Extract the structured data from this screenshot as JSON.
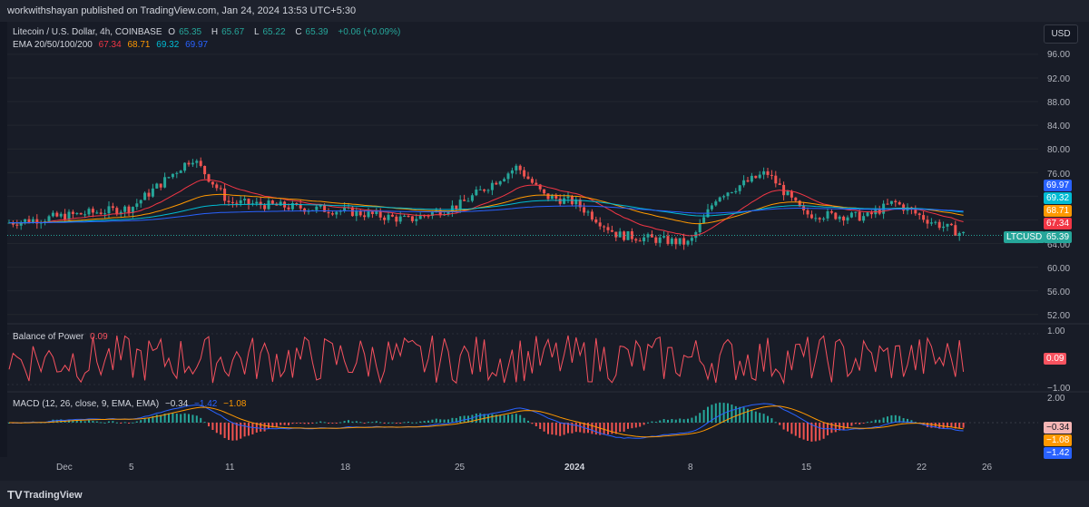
{
  "header": {
    "publisher": "workwithshayan published on TradingView.com, Jan 24, 2024 13:53 UTC+5:30"
  },
  "legend": {
    "symbol": "Litecoin / U.S. Dollar, 4h, COINBASE",
    "o_label": "O",
    "o": "65.35",
    "h_label": "H",
    "h": "65.67",
    "l_label": "L",
    "l": "65.22",
    "c_label": "C",
    "c": "65.39",
    "change": "+0.06 (+0.09%)",
    "ema_label": "EMA 20/50/100/200",
    "ema20": "67.34",
    "ema50": "68.71",
    "ema100": "69.32",
    "ema200": "69.97"
  },
  "currency_button": "USD",
  "price_axis": {
    "ticks": [
      "96.00",
      "92.00",
      "88.00",
      "84.00",
      "80.00",
      "76.00",
      "64.00",
      "60.00",
      "56.00",
      "52.00"
    ]
  },
  "price_tags": {
    "ema200": "69.97",
    "ema100": "69.32",
    "ema50": "68.71",
    "ema20": "67.34",
    "symbol": "LTCUSD",
    "last": "65.39"
  },
  "bop": {
    "label": "Balance of Power",
    "value": "0.09",
    "ticks": [
      "1.00",
      "−1.00"
    ],
    "tag": "0.09"
  },
  "macd": {
    "label": "MACD (12, 26, close, 9, EMA, EMA)",
    "hist": "−0.34",
    "macd": "−1.42",
    "signal": "−1.08",
    "tick": "2.00",
    "tags": [
      "−0.34",
      "−1.08",
      "−1.42"
    ]
  },
  "time_axis": [
    "Dec",
    "5",
    "11",
    "18",
    "25",
    "2024",
    "8",
    "15",
    "22",
    "26"
  ],
  "brand": {
    "logo": "TV",
    "name": "TradingView"
  },
  "colors": {
    "up": "#26a69a",
    "down": "#ef5350",
    "ema20": "#f23645",
    "ema50": "#ff9800",
    "ema100": "#00bcd4",
    "ema200": "#2962ff",
    "bop": "#f7525f",
    "macd": "#2962ff",
    "signal": "#ff9800"
  },
  "chart_data": {
    "type": "line",
    "title": "Litecoin / U.S. Dollar, 4h, COINBASE",
    "ylim": [
      50,
      98
    ],
    "close_path": [
      {
        "x": "Dec",
        "y": 67.5
      },
      {
        "x": "5",
        "y": 70.0
      },
      {
        "x": "8",
        "y": 78.5
      },
      {
        "x": "11",
        "y": 71.0
      },
      {
        "x": "18",
        "y": 69.5
      },
      {
        "x": "22",
        "y": 68.0
      },
      {
        "x": "25",
        "y": 70.5
      },
      {
        "x": "28",
        "y": 77.0
      },
      {
        "x": "31",
        "y": 72.0
      },
      {
        "x": "2024",
        "y": 71.0
      },
      {
        "x": "3",
        "y": 65.5
      },
      {
        "x": "8",
        "y": 64.0
      },
      {
        "x": "10",
        "y": 72.0
      },
      {
        "x": "12",
        "y": 76.0
      },
      {
        "x": "15",
        "y": 69.0
      },
      {
        "x": "19",
        "y": 68.5
      },
      {
        "x": "21",
        "y": 71.0
      },
      {
        "x": "22",
        "y": 68.0
      },
      {
        "x": "24",
        "y": 65.39
      }
    ],
    "last": {
      "open": 65.35,
      "high": 65.67,
      "low": 65.22,
      "close": 65.39,
      "change": 0.06,
      "change_pct": 0.09
    },
    "ema": {
      "20": 67.34,
      "50": 68.71,
      "100": 69.32,
      "200": 69.97
    },
    "bop_last": 0.09,
    "macd_last": {
      "histogram": -0.34,
      "macd": -1.42,
      "signal": -1.08
    }
  }
}
